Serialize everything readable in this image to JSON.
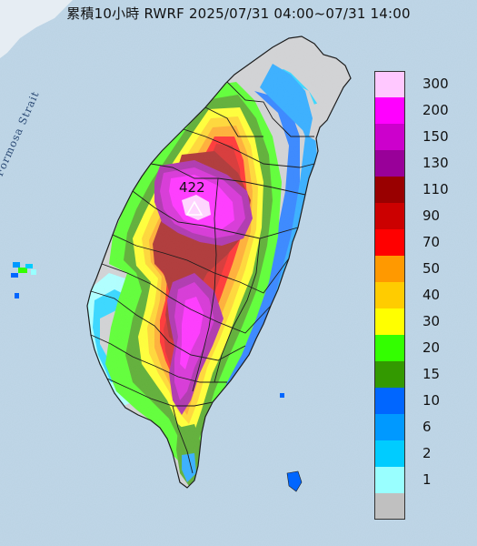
{
  "title": "累積10小時 RWRF 2025/07/31 04:00~07/31 14:00",
  "sea_label": "Formosa Strait",
  "max_value": "422",
  "colors": {
    "sea": "#b9d3e6",
    "land_dry": "#c4c6c8",
    "county_border": "#1e1e1e"
  },
  "legend": [
    {
      "label": "300",
      "color": "#ffc8ff"
    },
    {
      "label": "200",
      "color": "#ff00ff"
    },
    {
      "label": "150",
      "color": "#cc00cc"
    },
    {
      "label": "130",
      "color": "#990099"
    },
    {
      "label": "110",
      "color": "#990000"
    },
    {
      "label": "90",
      "color": "#cc0000"
    },
    {
      "label": "70",
      "color": "#ff0000"
    },
    {
      "label": "50",
      "color": "#ff9900"
    },
    {
      "label": "40",
      "color": "#ffcc00"
    },
    {
      "label": "30",
      "color": "#ffff00"
    },
    {
      "label": "20",
      "color": "#33ff00"
    },
    {
      "label": "15",
      "color": "#339900"
    },
    {
      "label": "10",
      "color": "#0066ff"
    },
    {
      "label": "6",
      "color": "#0099ff"
    },
    {
      "label": "2",
      "color": "#00ccff"
    },
    {
      "label": "1",
      "color": "#99ffff"
    },
    {
      "label": "",
      "color": "#c0c0c0"
    }
  ]
}
